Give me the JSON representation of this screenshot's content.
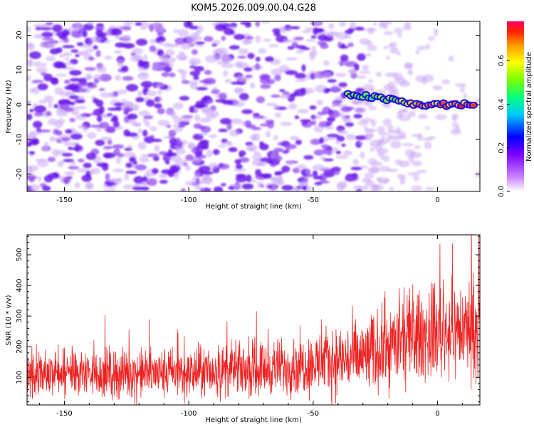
{
  "title": "KOM5.2026.009.00.04.G28",
  "chart_data": [
    {
      "type": "heatmap",
      "title": "KOM5.2026.009.00.04.G28",
      "xlabel": "Height of straight line (km)",
      "ylabel": "Frequency (Hz)",
      "xlim": [
        -165,
        17
      ],
      "ylim": [
        -25,
        24
      ],
      "xticks": [
        "-150",
        "-100",
        "-50",
        "0"
      ],
      "yticks": [
        "20",
        "10",
        "0",
        "-10",
        "-20"
      ],
      "xtick_values": [
        -150,
        -100,
        -50,
        0
      ],
      "ytick_values": [
        20,
        10,
        0,
        -10,
        -20
      ],
      "colorbar": {
        "label": "Normalized spectral amplitude",
        "range": [
          0,
          0.78
        ],
        "ticks": [
          "0.0",
          "0.2",
          "0.4",
          "0.6"
        ],
        "tick_values": [
          0,
          0.2,
          0.4,
          0.6
        ]
      },
      "signal_track": {
        "description_values": [
          [
            -35,
            3
          ],
          [
            -25,
            2
          ],
          [
            -15,
            1
          ],
          [
            -10,
            0
          ],
          [
            0,
            0
          ],
          [
            10,
            0
          ],
          [
            15,
            0
          ]
        ],
        "peak_amplitude": 0.78
      }
    },
    {
      "type": "line",
      "xlabel": "Height of straight line (km)",
      "ylabel": "SNR (10 * v/v)",
      "xlim": [
        -165,
        17
      ],
      "ylim": [
        10,
        565
      ],
      "xticks": [
        "-150",
        "-100",
        "-50",
        "0"
      ],
      "yticks": [
        "100",
        "200",
        "300",
        "400",
        "500"
      ],
      "xtick_values": [
        -150,
        -100,
        -50,
        0
      ],
      "ytick_values": [
        100,
        200,
        300,
        400,
        500
      ],
      "series": [
        {
          "name": "SNR",
          "color": "#ee2222",
          "trend": [
            [
              -165,
              115
            ],
            [
              -100,
              112
            ],
            [
              -60,
              135
            ],
            [
              -30,
              165
            ],
            [
              -20,
              200
            ],
            [
              -10,
              230
            ],
            [
              0,
              250
            ],
            [
              17,
              265
            ]
          ],
          "noise_amplitude": [
            [
              -165,
              70
            ],
            [
              -60,
              85
            ],
            [
              -30,
              120
            ],
            [
              -10,
              140
            ],
            [
              17,
              150
            ]
          ]
        }
      ]
    }
  ]
}
